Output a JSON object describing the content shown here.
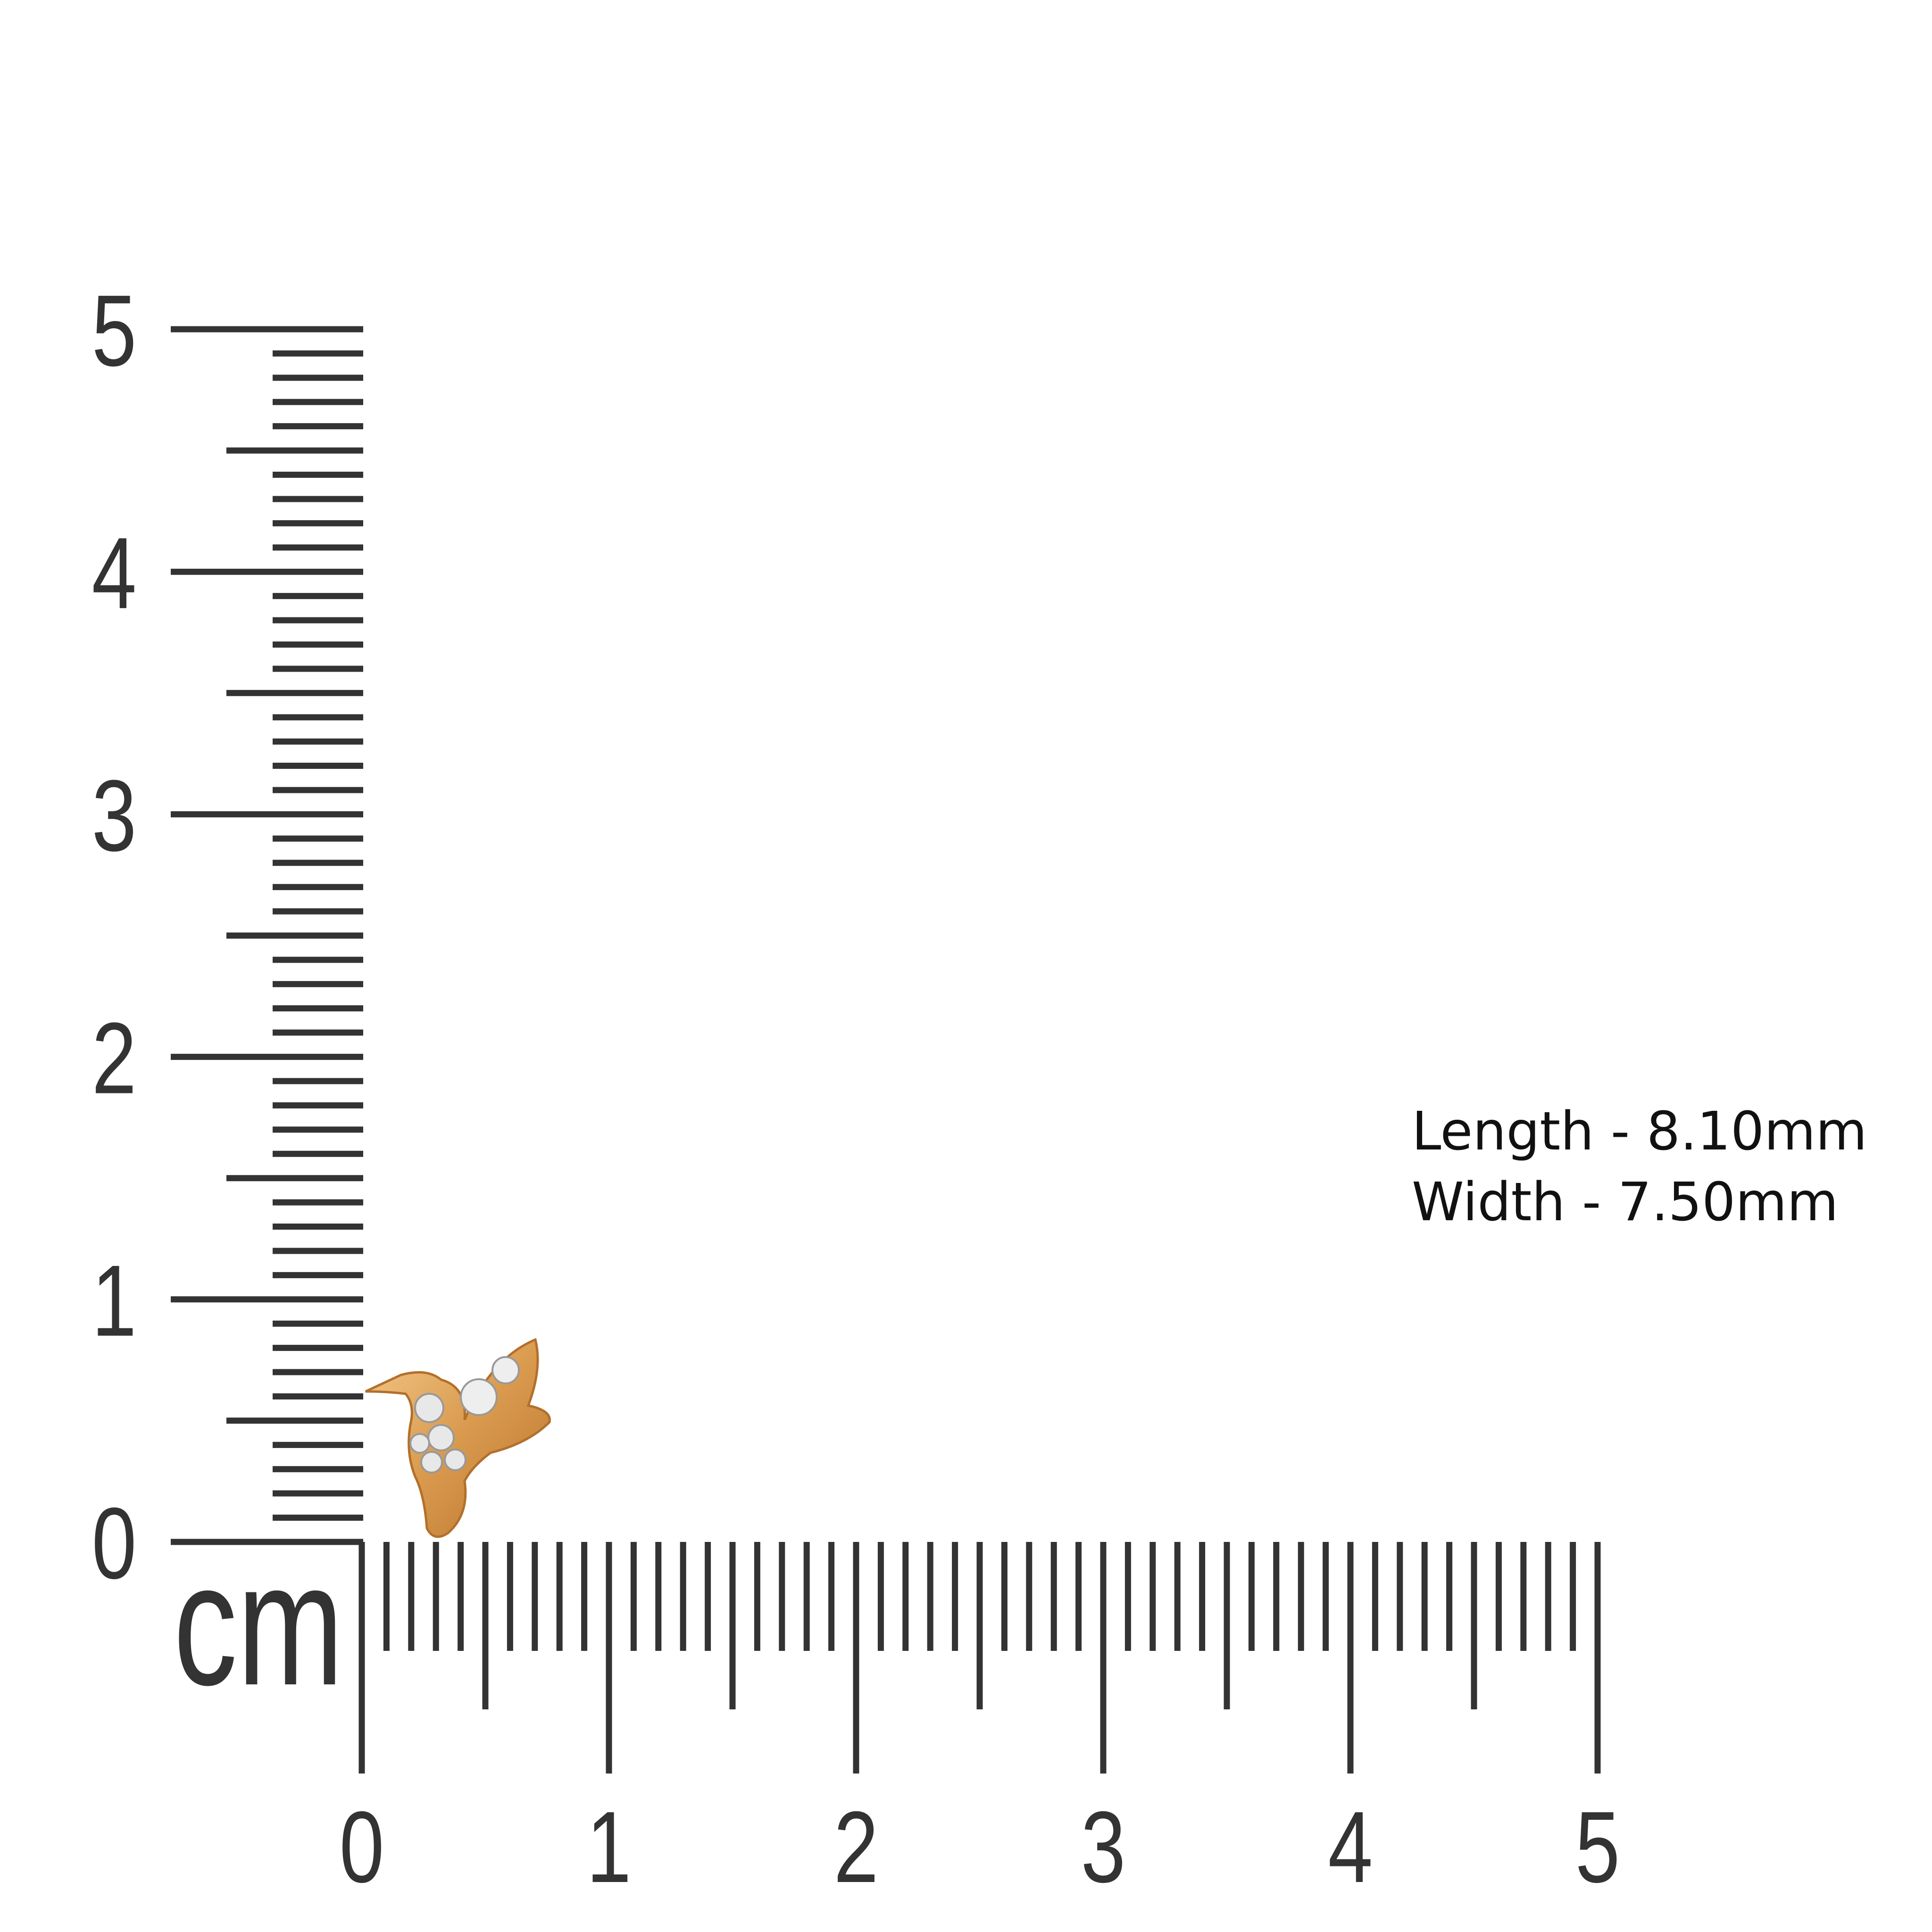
{
  "ruler": {
    "x_labels": [
      0,
      1,
      2,
      3,
      4,
      5
    ],
    "y_labels": [
      0,
      1,
      2,
      3,
      4,
      5
    ],
    "unit": "cm"
  },
  "dimensions": {
    "length": "Length - 8.10mm",
    "width": "Width - 7.50mm"
  }
}
